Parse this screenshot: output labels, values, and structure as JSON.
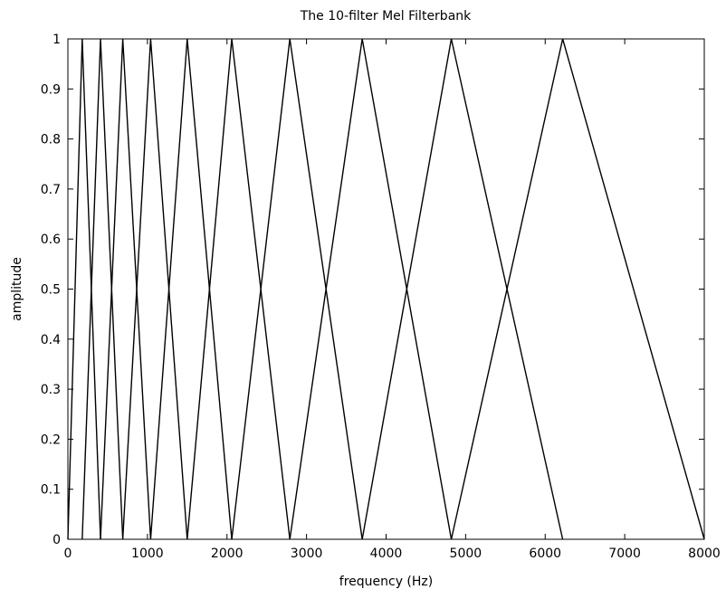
{
  "chart_data": {
    "type": "line",
    "title": "The 10-filter Mel Filterbank",
    "xlabel": "frequency (Hz)",
    "ylabel": "amplitude",
    "xlim": [
      0,
      8000
    ],
    "ylim": [
      0,
      1
    ],
    "xticks": [
      0,
      1000,
      2000,
      3000,
      4000,
      5000,
      6000,
      7000,
      8000
    ],
    "xtick_labels": [
      "0",
      "1000",
      "2000",
      "3000",
      "4000",
      "5000",
      "6000",
      "7000",
      "8000"
    ],
    "yticks": [
      0,
      0.1,
      0.2,
      0.3,
      0.4,
      0.5,
      0.6,
      0.7,
      0.8,
      0.9,
      1
    ],
    "ytick_labels": [
      "0",
      "0.1",
      "0.2",
      "0.3",
      "0.4",
      "0.5",
      "0.6",
      "0.7",
      "0.8",
      "0.9",
      "1"
    ],
    "grid": false,
    "legend": "none",
    "line_color": "#000000",
    "series": [
      {
        "x": [
          0,
          180,
          410
        ],
        "y": [
          0,
          1,
          0
        ]
      },
      {
        "x": [
          180,
          410,
          690
        ],
        "y": [
          0,
          1,
          0
        ]
      },
      {
        "x": [
          410,
          690,
          1040
        ],
        "y": [
          0,
          1,
          0
        ]
      },
      {
        "x": [
          690,
          1040,
          1500
        ],
        "y": [
          0,
          1,
          0
        ]
      },
      {
        "x": [
          1040,
          1500,
          2060
        ],
        "y": [
          0,
          1,
          0
        ]
      },
      {
        "x": [
          1500,
          2060,
          2790
        ],
        "y": [
          0,
          1,
          0
        ]
      },
      {
        "x": [
          2060,
          2790,
          3700
        ],
        "y": [
          0,
          1,
          0
        ]
      },
      {
        "x": [
          2790,
          3700,
          4820
        ],
        "y": [
          0,
          1,
          0
        ]
      },
      {
        "x": [
          3700,
          4820,
          6220
        ],
        "y": [
          0,
          1,
          0
        ]
      },
      {
        "x": [
          4820,
          6220,
          8000
        ],
        "y": [
          0,
          1,
          0
        ]
      }
    ]
  }
}
